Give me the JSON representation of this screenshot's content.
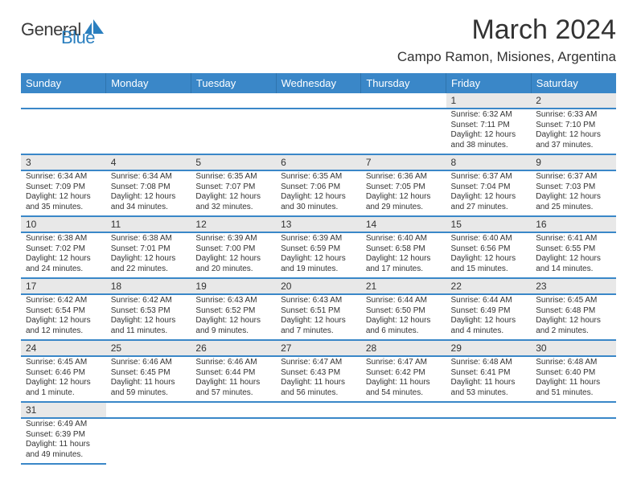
{
  "logo": {
    "word1": "General",
    "word2": "Blue"
  },
  "title": "March 2024",
  "location": "Campo Ramon, Misiones, Argentina",
  "headers": [
    "Sunday",
    "Monday",
    "Tuesday",
    "Wednesday",
    "Thursday",
    "Friday",
    "Saturday"
  ],
  "weeks": [
    [
      null,
      null,
      null,
      null,
      null,
      {
        "n": "1",
        "sr": "6:32 AM",
        "ss": "7:11 PM",
        "dl": "12 hours",
        "dl2": "and 38 minutes."
      },
      {
        "n": "2",
        "sr": "6:33 AM",
        "ss": "7:10 PM",
        "dl": "12 hours",
        "dl2": "and 37 minutes."
      }
    ],
    [
      {
        "n": "3",
        "sr": "6:34 AM",
        "ss": "7:09 PM",
        "dl": "12 hours",
        "dl2": "and 35 minutes."
      },
      {
        "n": "4",
        "sr": "6:34 AM",
        "ss": "7:08 PM",
        "dl": "12 hours",
        "dl2": "and 34 minutes."
      },
      {
        "n": "5",
        "sr": "6:35 AM",
        "ss": "7:07 PM",
        "dl": "12 hours",
        "dl2": "and 32 minutes."
      },
      {
        "n": "6",
        "sr": "6:35 AM",
        "ss": "7:06 PM",
        "dl": "12 hours",
        "dl2": "and 30 minutes."
      },
      {
        "n": "7",
        "sr": "6:36 AM",
        "ss": "7:05 PM",
        "dl": "12 hours",
        "dl2": "and 29 minutes."
      },
      {
        "n": "8",
        "sr": "6:37 AM",
        "ss": "7:04 PM",
        "dl": "12 hours",
        "dl2": "and 27 minutes."
      },
      {
        "n": "9",
        "sr": "6:37 AM",
        "ss": "7:03 PM",
        "dl": "12 hours",
        "dl2": "and 25 minutes."
      }
    ],
    [
      {
        "n": "10",
        "sr": "6:38 AM",
        "ss": "7:02 PM",
        "dl": "12 hours",
        "dl2": "and 24 minutes."
      },
      {
        "n": "11",
        "sr": "6:38 AM",
        "ss": "7:01 PM",
        "dl": "12 hours",
        "dl2": "and 22 minutes."
      },
      {
        "n": "12",
        "sr": "6:39 AM",
        "ss": "7:00 PM",
        "dl": "12 hours",
        "dl2": "and 20 minutes."
      },
      {
        "n": "13",
        "sr": "6:39 AM",
        "ss": "6:59 PM",
        "dl": "12 hours",
        "dl2": "and 19 minutes."
      },
      {
        "n": "14",
        "sr": "6:40 AM",
        "ss": "6:58 PM",
        "dl": "12 hours",
        "dl2": "and 17 minutes."
      },
      {
        "n": "15",
        "sr": "6:40 AM",
        "ss": "6:56 PM",
        "dl": "12 hours",
        "dl2": "and 15 minutes."
      },
      {
        "n": "16",
        "sr": "6:41 AM",
        "ss": "6:55 PM",
        "dl": "12 hours",
        "dl2": "and 14 minutes."
      }
    ],
    [
      {
        "n": "17",
        "sr": "6:42 AM",
        "ss": "6:54 PM",
        "dl": "12 hours",
        "dl2": "and 12 minutes."
      },
      {
        "n": "18",
        "sr": "6:42 AM",
        "ss": "6:53 PM",
        "dl": "12 hours",
        "dl2": "and 11 minutes."
      },
      {
        "n": "19",
        "sr": "6:43 AM",
        "ss": "6:52 PM",
        "dl": "12 hours",
        "dl2": "and 9 minutes."
      },
      {
        "n": "20",
        "sr": "6:43 AM",
        "ss": "6:51 PM",
        "dl": "12 hours",
        "dl2": "and 7 minutes."
      },
      {
        "n": "21",
        "sr": "6:44 AM",
        "ss": "6:50 PM",
        "dl": "12 hours",
        "dl2": "and 6 minutes."
      },
      {
        "n": "22",
        "sr": "6:44 AM",
        "ss": "6:49 PM",
        "dl": "12 hours",
        "dl2": "and 4 minutes."
      },
      {
        "n": "23",
        "sr": "6:45 AM",
        "ss": "6:48 PM",
        "dl": "12 hours",
        "dl2": "and 2 minutes."
      }
    ],
    [
      {
        "n": "24",
        "sr": "6:45 AM",
        "ss": "6:46 PM",
        "dl": "12 hours",
        "dl2": "and 1 minute."
      },
      {
        "n": "25",
        "sr": "6:46 AM",
        "ss": "6:45 PM",
        "dl": "11 hours",
        "dl2": "and 59 minutes."
      },
      {
        "n": "26",
        "sr": "6:46 AM",
        "ss": "6:44 PM",
        "dl": "11 hours",
        "dl2": "and 57 minutes."
      },
      {
        "n": "27",
        "sr": "6:47 AM",
        "ss": "6:43 PM",
        "dl": "11 hours",
        "dl2": "and 56 minutes."
      },
      {
        "n": "28",
        "sr": "6:47 AM",
        "ss": "6:42 PM",
        "dl": "11 hours",
        "dl2": "and 54 minutes."
      },
      {
        "n": "29",
        "sr": "6:48 AM",
        "ss": "6:41 PM",
        "dl": "11 hours",
        "dl2": "and 53 minutes."
      },
      {
        "n": "30",
        "sr": "6:48 AM",
        "ss": "6:40 PM",
        "dl": "11 hours",
        "dl2": "and 51 minutes."
      }
    ],
    [
      {
        "n": "31",
        "sr": "6:49 AM",
        "ss": "6:39 PM",
        "dl": "11 hours",
        "dl2": "and 49 minutes."
      },
      null,
      null,
      null,
      null,
      null,
      null
    ]
  ],
  "labels": {
    "sunrise": "Sunrise: ",
    "sunset": "Sunset: ",
    "daylight": "Daylight: "
  }
}
